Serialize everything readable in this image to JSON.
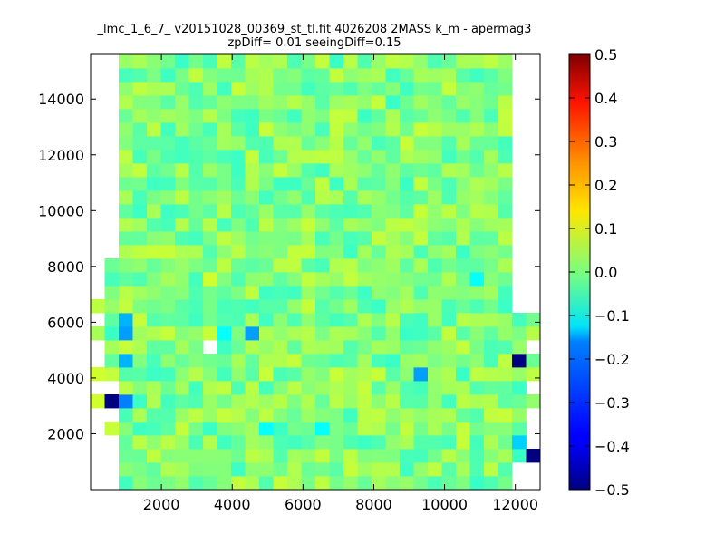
{
  "chart_data": {
    "type": "heatmap",
    "title_line1": "_lmc_1_6_7_ v20151028_00369_st_tl.fit 4026208 2MASS k_m - apermag3",
    "title_line2": "zpDiff= 0.01 seeingDiff=0.15",
    "xlabel": "",
    "ylabel": "",
    "x_range": [
      0,
      12700
    ],
    "y_range": [
      0,
      15600
    ],
    "x_ticks": [
      2000,
      4000,
      6000,
      8000,
      10000,
      12000
    ],
    "y_ticks": [
      2000,
      4000,
      6000,
      8000,
      10000,
      12000,
      14000
    ],
    "colorbar": {
      "colormap": "jet",
      "range": [
        -0.5,
        0.5
      ],
      "ticks": [
        "0.5",
        "0.4",
        "0.3",
        "0.2",
        "0.1",
        "0.0",
        "−0.1",
        "−0.2",
        "−0.3",
        "−0.4",
        "−0.5"
      ]
    },
    "grid_shape": {
      "cols": 32,
      "rows": 32
    },
    "background_value": 0.0,
    "notable_cells": [
      {
        "col": 1,
        "row": 6,
        "value": -0.5
      },
      {
        "col": 31,
        "row": 2,
        "value": -0.5
      },
      {
        "col": 30,
        "row": 9,
        "value": -0.5
      },
      {
        "col": 2,
        "row": 6,
        "value": -0.25
      },
      {
        "col": 2,
        "row": 9,
        "value": -0.2
      },
      {
        "col": 2,
        "row": 11,
        "value": -0.22
      },
      {
        "col": 2,
        "row": 12,
        "value": -0.2
      },
      {
        "col": 11,
        "row": 11,
        "value": -0.22
      },
      {
        "col": 23,
        "row": 8,
        "value": -0.22
      },
      {
        "col": 9,
        "row": 11,
        "value": -0.12
      },
      {
        "col": 30,
        "row": 3,
        "value": -0.17
      },
      {
        "col": 27,
        "row": 15,
        "value": -0.12
      },
      {
        "col": 16,
        "row": 4,
        "value": -0.12
      },
      {
        "col": 12,
        "row": 4,
        "value": -0.12
      },
      {
        "col": 0,
        "row": 6,
        "value": 0.08
      },
      {
        "col": 0,
        "row": 8,
        "value": 0.08
      },
      {
        "col": 0,
        "row": 13,
        "value": 0.06
      },
      {
        "col": 1,
        "row": 4,
        "value": 0.07
      },
      {
        "col": 31,
        "row": 8,
        "value": 0.06
      },
      {
        "col": 8,
        "row": 15,
        "value": 0.08
      },
      {
        "col": 12,
        "row": 8,
        "value": 0.07
      }
    ],
    "empty_cells": [
      {
        "col": 8,
        "row": 10
      }
    ]
  }
}
